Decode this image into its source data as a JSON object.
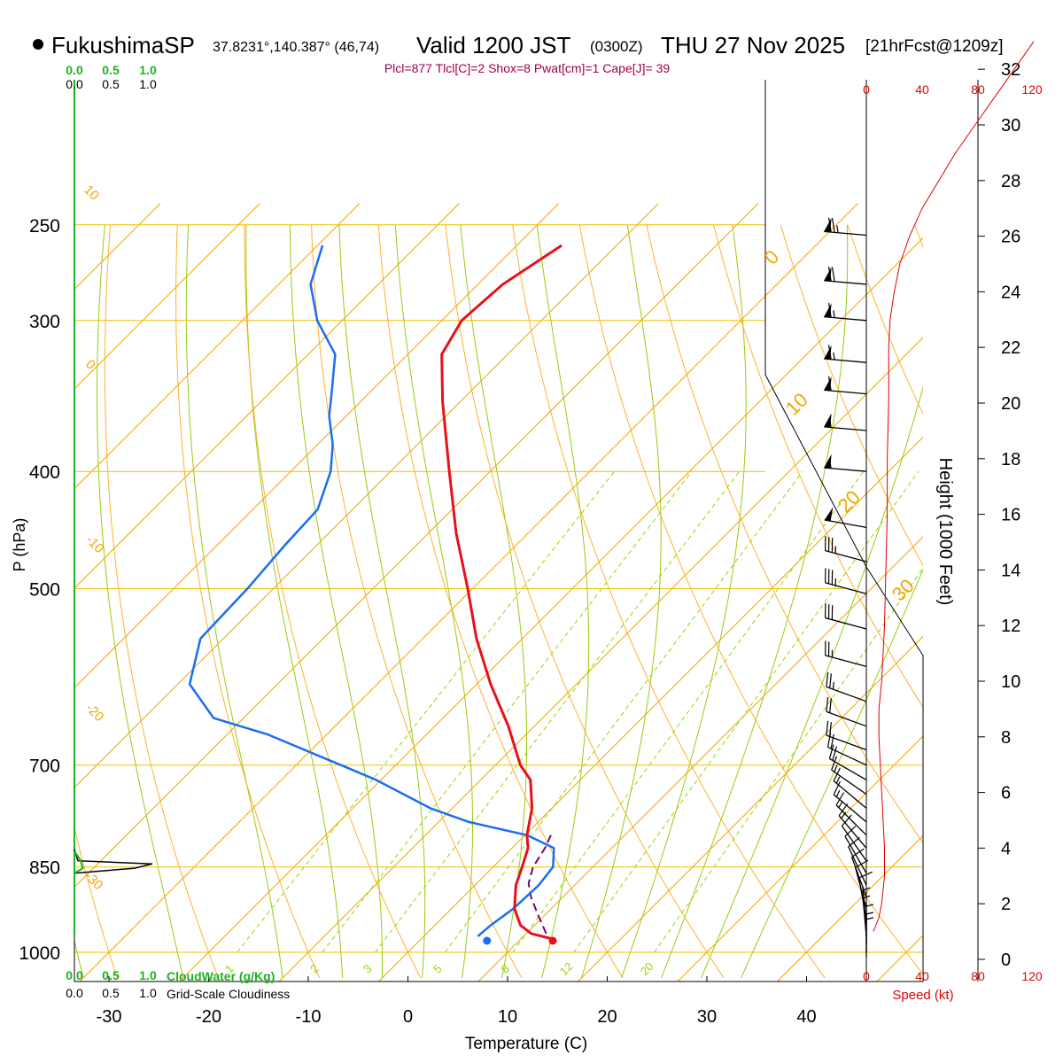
{
  "header": {
    "station": "FukushimaSP",
    "coords": "37.8231°,140.387° (46,74)",
    "valid_label": "Valid 1200 JST",
    "utc": "(0300Z)",
    "date": "THU 27 Nov 2025",
    "forecast": "[21hrFcst@1209z]",
    "indices": "Plcl=877 Tlcl[C]=2 Shox=8 Pwat[cm]=1 Cape[J]= 39"
  },
  "colors": {
    "temperature": "#e8101a",
    "dewpoint": "#1a6ef0",
    "isobar": "#f0c000",
    "isotherm": "#f0a800",
    "dry_adiabat": "#ffb030",
    "moist_adiabat": "#98cc10",
    "mixing_ratio": "#9ad400",
    "cloud": "#20b020",
    "speed": "#e00000",
    "parcel": "#80006a"
  },
  "chart_data": {
    "type": "skew-t",
    "title": "FukushimaSP Valid 1200 JST (0300Z) THU 27 Nov 2025",
    "xlabel": "Temperature (C)",
    "ylabel": "P (hPa)",
    "right_axis_label": "Height (1000 Feet)",
    "speed_label": "Speed (kt)",
    "x_range_at_1000hPa": [
      -34,
      47
    ],
    "pressure_range": [
      1030,
      250
    ],
    "x_ticks": [
      -30,
      -20,
      -10,
      0,
      10,
      20,
      30,
      40
    ],
    "pressure_ticks": [
      250,
      300,
      400,
      500,
      700,
      850,
      1000
    ],
    "height_ticks_kft": [
      0,
      2,
      4,
      6,
      8,
      10,
      12,
      14,
      16,
      18,
      20,
      22,
      24,
      26,
      28,
      30,
      32
    ],
    "speed_ticks": [
      "0",
      "40",
      "80",
      "120"
    ],
    "cloud_scale_ticks": [
      "0.0",
      "0.5",
      "1.0"
    ],
    "cloudwater_label": "CloudWater (g/Kg)",
    "cloudiness_label": "Grid-Scale Cloudiness",
    "mixing_ratio_labels": [
      "1",
      "2",
      "3",
      "5",
      "8",
      "12",
      "20"
    ],
    "isotherm_labels": [
      "10",
      "0",
      "-10",
      "-20",
      "-30"
    ],
    "right_isotherm_labels": [
      "0",
      "10",
      "20",
      "30"
    ],
    "temperature_profile": [
      {
        "p": 975,
        "t": 13.2
      },
      {
        "p": 965,
        "t": 10.5
      },
      {
        "p": 950,
        "t": 8.6
      },
      {
        "p": 920,
        "t": 6.3
      },
      {
        "p": 880,
        "t": 4.1
      },
      {
        "p": 850,
        "t": 2.9
      },
      {
        "p": 820,
        "t": 1.6
      },
      {
        "p": 800,
        "t": 0.2
      },
      {
        "p": 760,
        "t": -2.0
      },
      {
        "p": 720,
        "t": -5.0
      },
      {
        "p": 700,
        "t": -7.5
      },
      {
        "p": 650,
        "t": -12.6
      },
      {
        "p": 600,
        "t": -18.6
      },
      {
        "p": 550,
        "t": -24.6
      },
      {
        "p": 500,
        "t": -30.5
      },
      {
        "p": 450,
        "t": -37.2
      },
      {
        "p": 400,
        "t": -44.1
      },
      {
        "p": 350,
        "t": -51.8
      },
      {
        "p": 320,
        "t": -56.6
      },
      {
        "p": 300,
        "t": -58.0
      },
      {
        "p": 280,
        "t": -57.5
      },
      {
        "p": 260,
        "t": -55.5
      }
    ],
    "dewpoint_profile": [
      {
        "p": 970,
        "td": 5.4
      },
      {
        "p": 950,
        "td": 5.6
      },
      {
        "p": 920,
        "td": 6.2
      },
      {
        "p": 880,
        "td": 6.4
      },
      {
        "p": 850,
        "td": 6.0
      },
      {
        "p": 820,
        "td": 4.2
      },
      {
        "p": 800,
        "td": 0.2
      },
      {
        "p": 780,
        "td": -7.0
      },
      {
        "p": 760,
        "td": -12.2
      },
      {
        "p": 720,
        "td": -20.5
      },
      {
        "p": 700,
        "td": -25.5
      },
      {
        "p": 660,
        "td": -36.0
      },
      {
        "p": 640,
        "td": -43.0
      },
      {
        "p": 600,
        "td": -48.8
      },
      {
        "p": 550,
        "td": -52.3
      },
      {
        "p": 500,
        "td": -52.6
      },
      {
        "p": 460,
        "td": -53.2
      },
      {
        "p": 430,
        "td": -53.5
      },
      {
        "p": 400,
        "td": -56.0
      },
      {
        "p": 380,
        "td": -58.5
      },
      {
        "p": 360,
        "td": -61.7
      },
      {
        "p": 345,
        "td": -63.7
      },
      {
        "p": 320,
        "td": -67.3
      },
      {
        "p": 300,
        "td": -72.5
      },
      {
        "p": 280,
        "td": -76.8
      },
      {
        "p": 260,
        "td": -79.5
      }
    ],
    "parcel_profile": [
      {
        "p": 965,
        "t": 12.0
      },
      {
        "p": 930,
        "t": 9.2
      },
      {
        "p": 900,
        "t": 6.8
      },
      {
        "p": 877,
        "t": 5.2
      },
      {
        "p": 850,
        "t": 4.0
      },
      {
        "p": 820,
        "t": 3.3
      },
      {
        "p": 800,
        "t": 2.6
      }
    ],
    "surface_temperature_c": 13.2,
    "surface_dewpoint_c": 6.6,
    "surface_pressure_hpa": 975,
    "wind_speed_profile": [
      {
        "kft": 1.0,
        "kt": 5
      },
      {
        "kft": 1.5,
        "kt": 9
      },
      {
        "kft": 2,
        "kt": 11
      },
      {
        "kft": 3,
        "kt": 13
      },
      {
        "kft": 4,
        "kt": 13
      },
      {
        "kft": 5,
        "kt": 12
      },
      {
        "kft": 6,
        "kt": 11
      },
      {
        "kft": 7,
        "kt": 10
      },
      {
        "kft": 8,
        "kt": 9
      },
      {
        "kft": 9,
        "kt": 9
      },
      {
        "kft": 10,
        "kt": 11
      },
      {
        "kft": 11,
        "kt": 12
      },
      {
        "kft": 12,
        "kt": 13
      },
      {
        "kft": 14,
        "kt": 14
      },
      {
        "kft": 16,
        "kt": 15
      },
      {
        "kft": 18,
        "kt": 15
      },
      {
        "kft": 20,
        "kt": 16
      },
      {
        "kft": 22,
        "kt": 16
      },
      {
        "kft": 23,
        "kt": 17
      },
      {
        "kft": 24,
        "kt": 20
      },
      {
        "kft": 25,
        "kt": 24
      },
      {
        "kft": 26,
        "kt": 31
      },
      {
        "kft": 27,
        "kt": 40
      },
      {
        "kft": 28,
        "kt": 52
      },
      {
        "kft": 29,
        "kt": 64
      },
      {
        "kft": 30,
        "kt": 78
      },
      {
        "kft": 31,
        "kt": 92
      },
      {
        "kft": 32,
        "kt": 106
      },
      {
        "kft": 33,
        "kt": 120
      }
    ],
    "wind_barbs": [
      {
        "p": 255,
        "dir": 275,
        "kt": 75
      },
      {
        "p": 280,
        "dir": 275,
        "kt": 70
      },
      {
        "p": 300,
        "dir": 275,
        "kt": 65
      },
      {
        "p": 325,
        "dir": 275,
        "kt": 65
      },
      {
        "p": 345,
        "dir": 275,
        "kt": 60
      },
      {
        "p": 370,
        "dir": 275,
        "kt": 55
      },
      {
        "p": 400,
        "dir": 275,
        "kt": 55
      },
      {
        "p": 445,
        "dir": 280,
        "kt": 50
      },
      {
        "p": 475,
        "dir": 285,
        "kt": 35
      },
      {
        "p": 505,
        "dir": 285,
        "kt": 35
      },
      {
        "p": 540,
        "dir": 285,
        "kt": 30
      },
      {
        "p": 580,
        "dir": 285,
        "kt": 25
      },
      {
        "p": 620,
        "dir": 290,
        "kt": 25
      },
      {
        "p": 650,
        "dir": 290,
        "kt": 20
      },
      {
        "p": 680,
        "dir": 290,
        "kt": 20
      },
      {
        "p": 700,
        "dir": 295,
        "kt": 20
      },
      {
        "p": 720,
        "dir": 300,
        "kt": 20
      },
      {
        "p": 740,
        "dir": 305,
        "kt": 15
      },
      {
        "p": 760,
        "dir": 310,
        "kt": 15
      },
      {
        "p": 780,
        "dir": 310,
        "kt": 15
      },
      {
        "p": 800,
        "dir": 315,
        "kt": 15
      },
      {
        "p": 820,
        "dir": 320,
        "kt": 15
      },
      {
        "p": 840,
        "dir": 325,
        "kt": 10
      },
      {
        "p": 860,
        "dir": 330,
        "kt": 10
      },
      {
        "p": 880,
        "dir": 335,
        "kt": 10
      },
      {
        "p": 900,
        "dir": 340,
        "kt": 10
      },
      {
        "p": 920,
        "dir": 345,
        "kt": 10
      },
      {
        "p": 940,
        "dir": 350,
        "kt": 10
      },
      {
        "p": 955,
        "dir": 355,
        "kt": 5
      },
      {
        "p": 970,
        "dir": 355,
        "kt": 5
      },
      {
        "p": 985,
        "dir": 360,
        "kt": 5
      },
      {
        "p": 1000,
        "dir": 360,
        "kt": 5
      },
      {
        "p": 1010,
        "dir": 360,
        "kt": 5
      }
    ],
    "cloud_fraction": [
      {
        "p": 822,
        "f": 0
      },
      {
        "p": 840,
        "f": 0.05
      },
      {
        "p": 845,
        "f": 1.1
      },
      {
        "p": 852,
        "f": 0.85
      },
      {
        "p": 860,
        "f": 0
      }
    ],
    "cloud_water": [
      {
        "p": 825,
        "q": 0
      },
      {
        "p": 838,
        "q": 0.08
      },
      {
        "p": 852,
        "q": 0.12
      },
      {
        "p": 860,
        "q": 0
      }
    ]
  }
}
